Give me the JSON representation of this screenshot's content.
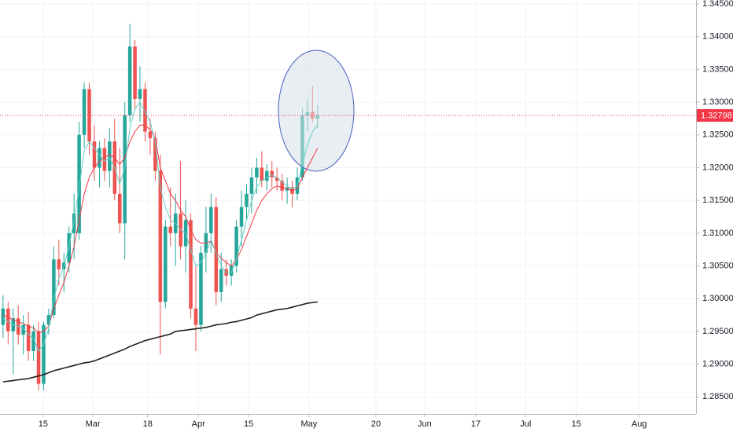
{
  "chart_data": {
    "type": "candlestick",
    "up_color": "#26a69a",
    "down_color": "#ef5350",
    "grid": true,
    "candles": {
      "open": [
        1.296,
        1.2985,
        1.295,
        1.297,
        1.2945,
        1.296,
        1.292,
        1.295,
        1.287,
        1.296,
        1.2975,
        1.306,
        1.3045,
        1.3055,
        1.31,
        1.31,
        1.325,
        1.332,
        1.324,
        1.32,
        1.323,
        1.3195,
        1.324,
        1.316,
        1.3115,
        1.328,
        1.3385,
        1.3305,
        1.332,
        1.3255,
        1.3245,
        1.3195,
        1.2995,
        1.311,
        1.31,
        1.313,
        1.308,
        1.312,
        1.2985,
        1.296,
        1.307,
        1.31,
        1.314,
        1.301,
        1.3045,
        1.3035,
        1.305,
        1.311,
        1.314,
        1.316,
        1.3185,
        1.32,
        1.318,
        1.3195,
        1.3185,
        1.318,
        1.3165,
        1.317,
        1.316,
        1.3185,
        1.328,
        1.3285,
        1.3275
      ],
      "high": [
        1.3005,
        1.2995,
        1.2985,
        1.299,
        1.2975,
        1.298,
        1.296,
        1.2965,
        1.2965,
        1.2985,
        1.308,
        1.309,
        1.307,
        1.311,
        1.316,
        1.327,
        1.333,
        1.333,
        1.3265,
        1.324,
        1.3245,
        1.326,
        1.3275,
        1.323,
        1.33,
        1.342,
        1.3395,
        1.3355,
        1.333,
        1.3275,
        1.3255,
        1.322,
        1.312,
        1.317,
        1.316,
        1.321,
        1.315,
        1.313,
        1.305,
        1.308,
        1.314,
        1.316,
        1.3155,
        1.307,
        1.306,
        1.306,
        1.312,
        1.3165,
        1.3175,
        1.32,
        1.3215,
        1.3225,
        1.3205,
        1.321,
        1.32,
        1.319,
        1.3185,
        1.318,
        1.32,
        1.329,
        1.3305,
        1.3325,
        1.3295
      ],
      "low": [
        1.294,
        1.293,
        1.2885,
        1.293,
        1.2915,
        1.2905,
        1.2905,
        1.286,
        1.286,
        1.2945,
        1.297,
        1.302,
        1.301,
        1.304,
        1.306,
        1.309,
        1.323,
        1.322,
        1.318,
        1.317,
        1.318,
        1.317,
        1.315,
        1.31,
        1.306,
        1.327,
        1.329,
        1.327,
        1.324,
        1.322,
        1.318,
        1.2915,
        1.2985,
        1.308,
        1.305,
        1.306,
        1.304,
        1.297,
        1.292,
        1.295,
        1.304,
        1.307,
        1.299,
        1.2995,
        1.302,
        1.302,
        1.304,
        1.308,
        1.312,
        1.313,
        1.316,
        1.317,
        1.3165,
        1.317,
        1.3165,
        1.315,
        1.3145,
        1.314,
        1.315,
        1.318,
        1.3255,
        1.327,
        1.326
      ],
      "close": [
        1.2985,
        1.295,
        1.297,
        1.2945,
        1.296,
        1.292,
        1.295,
        1.287,
        1.296,
        1.2975,
        1.306,
        1.3045,
        1.3055,
        1.31,
        1.313,
        1.325,
        1.332,
        1.324,
        1.32,
        1.323,
        1.3195,
        1.324,
        1.316,
        1.3115,
        1.328,
        1.3385,
        1.3305,
        1.332,
        1.3255,
        1.3245,
        1.3195,
        1.2995,
        1.311,
        1.31,
        1.313,
        1.308,
        1.312,
        1.2985,
        1.296,
        1.307,
        1.31,
        1.314,
        1.301,
        1.3045,
        1.3035,
        1.305,
        1.311,
        1.314,
        1.316,
        1.3185,
        1.32,
        1.318,
        1.3195,
        1.3185,
        1.318,
        1.3165,
        1.317,
        1.316,
        1.3185,
        1.328,
        1.3285,
        1.3275,
        1.32798
      ]
    },
    "series": [
      {
        "color": "#f23645",
        "values": [
          1.2975,
          1.2972,
          1.2968,
          1.2965,
          1.2962,
          1.2958,
          1.2955,
          1.2948,
          1.295,
          1.2958,
          1.2985,
          1.3005,
          1.3025,
          1.305,
          1.308,
          1.312,
          1.316,
          1.3185,
          1.32,
          1.321,
          1.3215,
          1.322,
          1.3215,
          1.3205,
          1.3215,
          1.324,
          1.3255,
          1.3265,
          1.3265,
          1.3258,
          1.3245,
          1.32,
          1.318,
          1.316,
          1.315,
          1.3135,
          1.3125,
          1.3105,
          1.309,
          1.3085,
          1.3085,
          1.3088,
          1.307,
          1.3062,
          1.3055,
          1.305,
          1.306,
          1.3075,
          1.3095,
          1.3115,
          1.3135,
          1.315,
          1.316,
          1.3168,
          1.3172,
          1.317,
          1.3168,
          1.3165,
          1.3168,
          1.3185,
          1.32,
          1.3215,
          1.323
        ]
      },
      {
        "color": "#5fcfc4",
        "values": [
          1.297,
          1.2965,
          1.296,
          1.2958,
          1.2955,
          1.2945,
          1.294,
          1.292,
          1.293,
          1.2955,
          1.3,
          1.303,
          1.305,
          1.308,
          1.312,
          1.317,
          1.3225,
          1.324,
          1.323,
          1.322,
          1.321,
          1.3215,
          1.32,
          1.3175,
          1.32,
          1.326,
          1.329,
          1.33,
          1.3285,
          1.327,
          1.324,
          1.317,
          1.314,
          1.312,
          1.3115,
          1.3105,
          1.31,
          1.3075,
          1.305,
          1.3055,
          1.307,
          1.309,
          1.307,
          1.305,
          1.304,
          1.304,
          1.306,
          1.309,
          1.312,
          1.315,
          1.317,
          1.318,
          1.3185,
          1.3188,
          1.3185,
          1.3178,
          1.3172,
          1.3168,
          1.3172,
          1.3205,
          1.3235,
          1.3255,
          1.3265
        ]
      },
      {
        "color": "#222222",
        "values": [
          1.2873,
          1.2874,
          1.2875,
          1.2876,
          1.2877,
          1.2878,
          1.288,
          1.2882,
          1.2884,
          1.2887,
          1.289,
          1.2892,
          1.2894,
          1.2896,
          1.2898,
          1.29,
          1.2902,
          1.2903,
          1.2905,
          1.2908,
          1.2911,
          1.2914,
          1.2917,
          1.292,
          1.2923,
          1.2927,
          1.293,
          1.2933,
          1.2936,
          1.2938,
          1.294,
          1.2942,
          1.2944,
          1.2946,
          1.295,
          1.2951,
          1.2952,
          1.2953,
          1.2954,
          1.2955,
          1.2956,
          1.2958,
          1.296,
          1.2961,
          1.2962,
          1.2964,
          1.2965,
          1.2967,
          1.2969,
          1.2971,
          1.2975,
          1.2977,
          1.2979,
          1.2981,
          1.2983,
          1.2984,
          1.2985,
          1.2987,
          1.2989,
          1.2991,
          1.2993,
          1.2994,
          1.2995
        ]
      }
    ],
    "last_price": 1.32798,
    "last_price_color": "#f23645",
    "ylim": [
      1.2824,
      1.3456
    ],
    "yticks": [
      {
        "value": 1.285,
        "label": "1.28500"
      },
      {
        "value": 1.29,
        "label": "1.29000"
      },
      {
        "value": 1.295,
        "label": "1.29500"
      },
      {
        "value": 1.3,
        "label": "1.30000"
      },
      {
        "value": 1.305,
        "label": "1.30500"
      },
      {
        "value": 1.31,
        "label": "1.31000"
      },
      {
        "value": 1.315,
        "label": "1.31500"
      },
      {
        "value": 1.32,
        "label": "1.32000"
      },
      {
        "value": 1.325,
        "label": "1.32500"
      },
      {
        "value": 1.33,
        "label": "1.33000"
      },
      {
        "value": 1.335,
        "label": "1.33500"
      },
      {
        "value": 1.34,
        "label": "1.34000"
      },
      {
        "value": 1.345,
        "label": "1.34500"
      }
    ],
    "xlim": [
      -0.6,
      136.6
    ],
    "xticks": [
      {
        "value": 7.9,
        "label": "15"
      },
      {
        "value": 17.7,
        "label": "Mar"
      },
      {
        "value": 28.5,
        "label": "18"
      },
      {
        "value": 38.5,
        "label": "Apr"
      },
      {
        "value": 48.4,
        "label": "15"
      },
      {
        "value": 60.3,
        "label": "May"
      },
      {
        "value": 73.5,
        "label": "20"
      },
      {
        "value": 83.1,
        "label": "Jun"
      },
      {
        "value": 93.2,
        "label": "17"
      },
      {
        "value": 103,
        "label": "Jul"
      },
      {
        "value": 113,
        "label": "15"
      },
      {
        "value": 125.4,
        "label": "Aug"
      }
    ]
  }
}
